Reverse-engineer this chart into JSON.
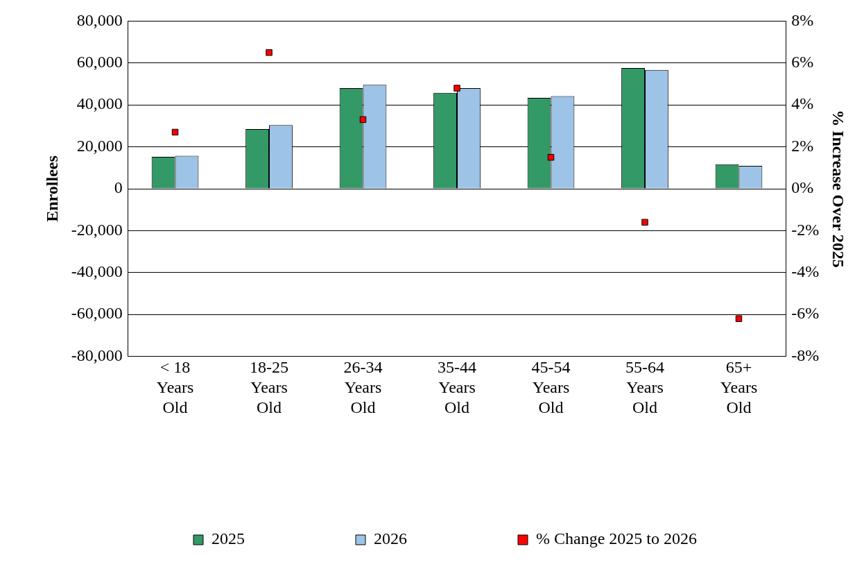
{
  "chart_data": {
    "type": "bar",
    "categories": [
      "< 18 Years Old",
      "18-25 Years Old",
      "26-34 Years Old",
      "35-44 Years Old",
      "45-54 Years Old",
      "55-64 Years Old",
      "65+ Years Old"
    ],
    "series": [
      {
        "name": "2025",
        "color": "#339966",
        "values": [
          15200,
          28500,
          48000,
          45800,
          43400,
          57600,
          11700
        ]
      },
      {
        "name": "2026",
        "color": "#9dc3e6",
        "values": [
          15700,
          30400,
          49600,
          48000,
          44200,
          56700,
          10900
        ]
      },
      {
        "name": "% Change 2025 to 2026",
        "type": "scatter",
        "axis": "y2",
        "color": "#ff0000",
        "values": [
          2.7,
          6.5,
          3.3,
          4.8,
          1.5,
          -1.6,
          -6.2
        ]
      }
    ],
    "ylabel": "Enrollees",
    "y2label": "% Increase Over 2025",
    "ylim": [
      -80000,
      80000
    ],
    "yticks": [
      {
        "value": -80000,
        "label": "-80,000"
      },
      {
        "value": -60000,
        "label": "-60,000"
      },
      {
        "value": -40000,
        "label": "-40,000"
      },
      {
        "value": -20000,
        "label": "-20,000"
      },
      0,
      {
        "value": 20000,
        "label": "20,000"
      },
      {
        "value": 40000,
        "label": "40,000"
      },
      {
        "value": 60000,
        "label": "60,000"
      },
      {
        "value": 80000,
        "label": "80,000"
      }
    ],
    "y2lim": [
      -8,
      8
    ],
    "y2ticks": [
      {
        "value": -8,
        "label": "-8%"
      },
      {
        "value": -6,
        "label": "-6%"
      },
      {
        "value": -4,
        "label": "-4%"
      },
      {
        "value": -2,
        "label": "-2%"
      },
      {
        "value": 0,
        "label": "0%"
      },
      {
        "value": 2,
        "label": "2%"
      },
      {
        "value": 4,
        "label": "4%"
      },
      {
        "value": 6,
        "label": "6%"
      },
      {
        "value": 8,
        "label": "8%"
      }
    ],
    "grid": "y",
    "legend": "bottom",
    "marker": "square"
  }
}
